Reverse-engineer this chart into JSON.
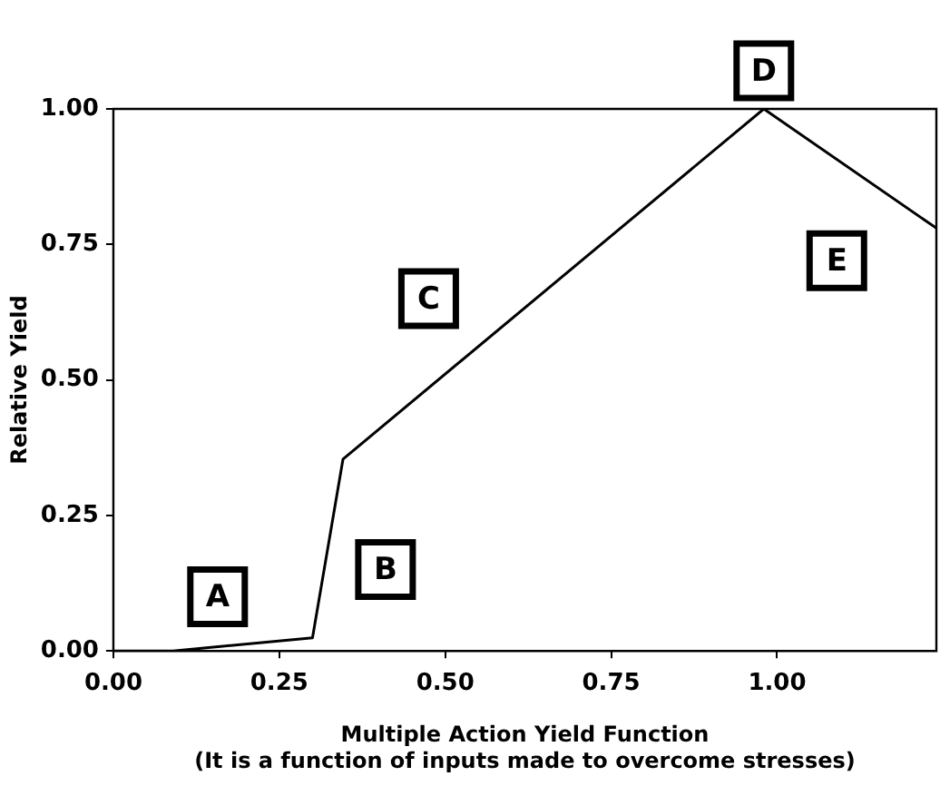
{
  "chart_data": {
    "type": "line",
    "xlabel": "Multiple Action Yield Function",
    "ylabel": "Relative Yield",
    "x": [
      0,
      0.09,
      0.3,
      0.346,
      0.98,
      1.24
    ],
    "series": [
      {
        "color": "#000000",
        "values": [
          0,
          0,
          0.024,
          0.354,
          1.0,
          0.78
        ]
      }
    ],
    "xlim": [
      0,
      1.24
    ],
    "ylim": [
      0,
      1
    ],
    "xticks": [
      {
        "value": 0,
        "label": "0.00"
      },
      0.25,
      {
        "value": 0.5,
        "label": "0.50"
      },
      0.75,
      {
        "value": 1,
        "label": "1.00"
      }
    ],
    "yticks": [
      {
        "value": 0,
        "label": "0.00"
      },
      0.25,
      {
        "value": 0.5,
        "label": "0.50"
      },
      0.75,
      {
        "value": 1,
        "label": "1.00"
      }
    ],
    "grid": false,
    "legend": false,
    "marker": "none",
    "line_style": "solid",
    "annotations": [
      {
        "text": "A",
        "x": 0.157,
        "y": 0.1
      },
      {
        "text": "B",
        "x": 0.41,
        "y": 0.15
      },
      {
        "text": "C",
        "x": 0.475,
        "y": 0.65
      },
      {
        "text": "D",
        "x": 0.98,
        "y": 1.0
      },
      {
        "text": "E",
        "x": 1.09,
        "y": 0.72
      },
      "(It is a function of inputs made to overcome stresses)"
    ]
  }
}
